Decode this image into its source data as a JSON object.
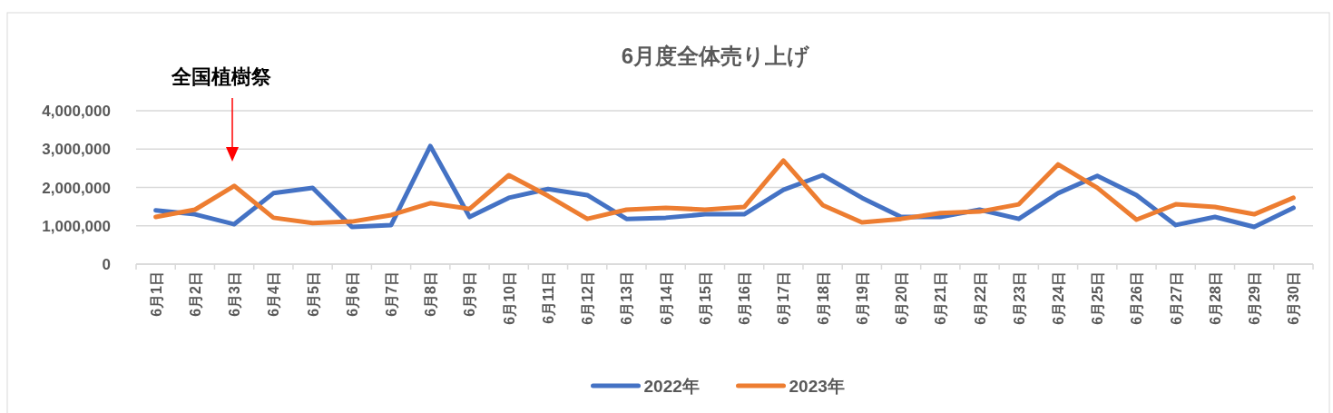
{
  "chart_data": {
    "type": "line",
    "title": "6月度全体売り上げ",
    "categories": [
      "6月1日",
      "6月2日",
      "6月3日",
      "6月4日",
      "6月5日",
      "6月6日",
      "6月7日",
      "6月8日",
      "6月9日",
      "6月10日",
      "6月11日",
      "6月12日",
      "6月13日",
      "6月14日",
      "6月15日",
      "6月16日",
      "6月17日",
      "6月18日",
      "6月19日",
      "6月20日",
      "6月21日",
      "6月22日",
      "6月23日",
      "6月24日",
      "6月25日",
      "6月26日",
      "6月27日",
      "6月28日",
      "6月29日",
      "6月30日"
    ],
    "series": [
      {
        "name": "2022年",
        "color": "#4472c4",
        "values": [
          1400000,
          1300000,
          1040000,
          1850000,
          1990000,
          970000,
          1020000,
          3080000,
          1230000,
          1730000,
          1960000,
          1800000,
          1180000,
          1210000,
          1300000,
          1300000,
          1940000,
          2320000,
          1730000,
          1230000,
          1230000,
          1420000,
          1180000,
          1850000,
          2300000,
          1800000,
          1020000,
          1230000,
          970000,
          1470000
        ]
      },
      {
        "name": "2023年",
        "color": "#ed7d31",
        "values": [
          1230000,
          1420000,
          2040000,
          1210000,
          1070000,
          1110000,
          1280000,
          1590000,
          1440000,
          2320000,
          1780000,
          1180000,
          1420000,
          1470000,
          1420000,
          1490000,
          2700000,
          1540000,
          1090000,
          1180000,
          1330000,
          1370000,
          1560000,
          2600000,
          1990000,
          1160000,
          1560000,
          1490000,
          1300000,
          1730000
        ]
      }
    ],
    "ylim": [
      0,
      4000000
    ],
    "yticks": [
      {
        "value": 0,
        "label": "0"
      },
      {
        "value": 1000000,
        "label": "1,000,000"
      },
      {
        "value": 2000000,
        "label": "2,000,000"
      },
      {
        "value": 3000000,
        "label": "3,000,000"
      },
      {
        "value": 4000000,
        "label": "4,000,000"
      }
    ],
    "grid": "y",
    "legend": "bottom",
    "marker": "none",
    "line_style": "solid",
    "annotations": [
      "全国植樹祭"
    ]
  }
}
